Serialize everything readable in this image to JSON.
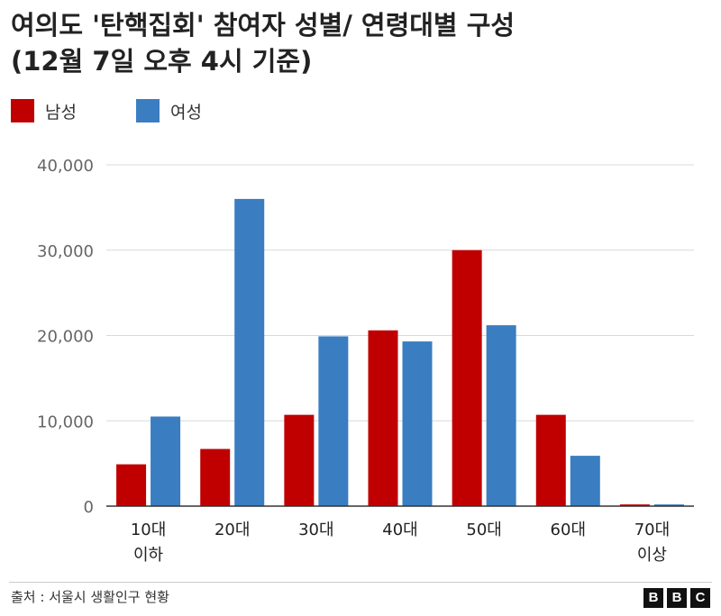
{
  "title_line1": "여의도 '탄핵집회' 참여자 성별/ 연령대별 구성",
  "title_line2": "(12월 7일 오후 4시 기준)",
  "source": "출처 : 서울시 생활인구 현황",
  "logo": [
    "B",
    "B",
    "C"
  ],
  "colors": {
    "male": "#c00000",
    "female": "#3a7dc1",
    "grid": "#d9d9d9",
    "axis": "#333333",
    "tick": "#666666"
  },
  "chart_data": {
    "type": "bar",
    "categories": [
      "10대\n이하",
      "20대",
      "30대",
      "40대",
      "50대",
      "60대",
      "70대\n이상"
    ],
    "series": [
      {
        "name": "남성",
        "color": "#c00000",
        "values": [
          4900,
          6700,
          10700,
          20600,
          30000,
          10700,
          200
        ]
      },
      {
        "name": "여성",
        "color": "#3a7dc1",
        "values": [
          10500,
          36000,
          19900,
          19300,
          21200,
          5900,
          200
        ]
      }
    ],
    "yticks": [
      "0",
      "10,000",
      "20,000",
      "30,000",
      "40,000"
    ],
    "ylim": [
      0,
      40000
    ],
    "grid": true,
    "legend_position": "top-left",
    "title": "",
    "xlabel": "",
    "ylabel": ""
  }
}
